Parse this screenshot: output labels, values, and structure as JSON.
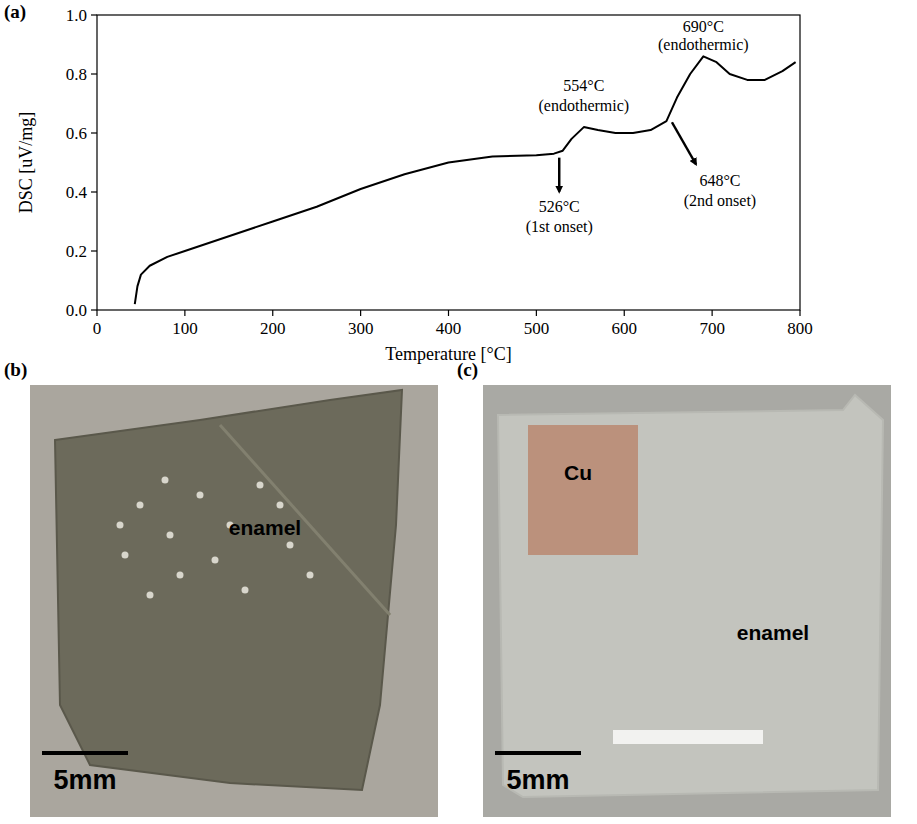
{
  "chart_data": {
    "type": "line",
    "panel_label": "(a)",
    "x_label": "Temperature [°C]",
    "y_label": "DSC [uV/mg]",
    "x": [
      43,
      46,
      50,
      60,
      80,
      100,
      150,
      200,
      250,
      300,
      350,
      400,
      450,
      500,
      520,
      530,
      540,
      554,
      570,
      590,
      610,
      630,
      648,
      660,
      675,
      690,
      705,
      720,
      740,
      760,
      780,
      795
    ],
    "values": [
      0.02,
      0.08,
      0.12,
      0.15,
      0.18,
      0.2,
      0.25,
      0.3,
      0.35,
      0.41,
      0.46,
      0.5,
      0.52,
      0.525,
      0.53,
      0.54,
      0.58,
      0.62,
      0.61,
      0.6,
      0.6,
      0.61,
      0.64,
      0.72,
      0.8,
      0.86,
      0.84,
      0.8,
      0.78,
      0.78,
      0.81,
      0.84
    ],
    "color": "#000000",
    "line_style": "solid",
    "xlim": [
      0,
      800
    ],
    "xticks": [
      0,
      100,
      200,
      300,
      400,
      500,
      600,
      700,
      800
    ],
    "ylim": [
      0,
      1.0
    ],
    "yticks": [
      {
        "value": 0,
        "label": "0.0"
      },
      0.2,
      0.4,
      0.6,
      0.8,
      {
        "value": 1.0,
        "label": "1.0"
      }
    ],
    "annotations": [
      {
        "lines": [
          "554°C",
          "(endothermic)"
        ],
        "x": 554,
        "y": 0.62
      },
      {
        "lines": [
          "690°C",
          "(endothermic)"
        ],
        "x": 690,
        "y": 0.86
      },
      {
        "lines": [
          "526°C",
          "(1st onset)"
        ],
        "x": 526,
        "y": 0.53
      },
      {
        "lines": [
          "648°C",
          "(2nd onset)"
        ],
        "x": 652,
        "y": 0.65
      }
    ]
  },
  "photos": [
    {
      "panel_label": "(b)",
      "texts": [
        "enamel"
      ],
      "scale_bar": "5mm"
    },
    {
      "panel_label": "(c)",
      "texts": [
        "Cu",
        "enamel"
      ],
      "scale_bar": "5mm"
    }
  ]
}
